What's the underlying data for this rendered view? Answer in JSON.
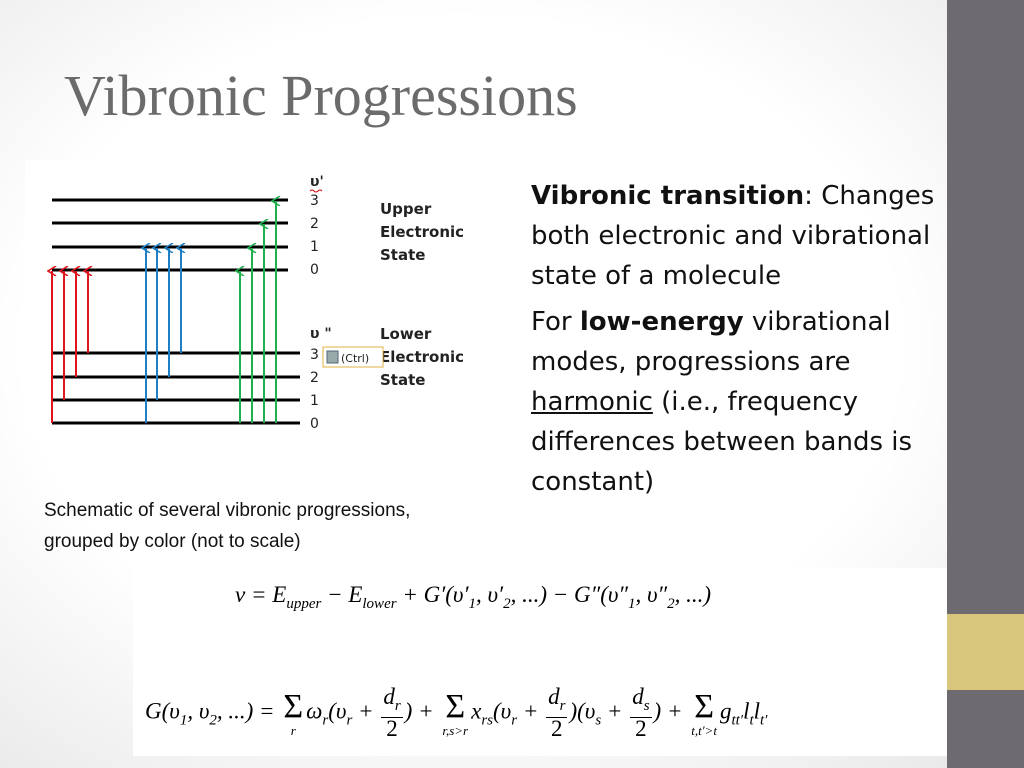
{
  "title": "Vibronic Progressions",
  "diagram": {
    "upper_symbol": "υ'",
    "upper_levels": [
      "3",
      "2",
      "1",
      "0"
    ],
    "upper_label": [
      "Upper",
      "Electronic",
      "State"
    ],
    "lower_symbol": "υ \"",
    "lower_levels": [
      "3",
      "2",
      "1",
      "0"
    ],
    "lower_label": [
      "Lower",
      "Electronic",
      "State"
    ],
    "paste_tag": "(Ctrl)"
  },
  "caption": [
    "Schematic of several vibronic progressions,",
    "grouped by color (not to scale)"
  ],
  "bullets": [
    [
      {
        "text": "Vibronic transition",
        "style": "bold"
      },
      {
        "text": ": Changes both electronic and vibrational state of a molecule",
        "style": "normal"
      }
    ],
    [
      {
        "text": "For ",
        "style": "normal"
      },
      {
        "text": "low-energy",
        "style": "bold"
      },
      {
        "text": " vibrational modes, progressions are ",
        "style": "normal"
      },
      {
        "text": "harmonic",
        "style": "underline"
      },
      {
        "text": " (i.e., frequency differences between bands is constant)",
        "style": "normal"
      }
    ]
  ],
  "equations": [
    [
      {
        "text": "ν",
        "style": "normal"
      },
      {
        "text": " = ",
        "style": "normal"
      },
      {
        "text": "E",
        "style": "normal"
      },
      {
        "text": "upper",
        "style": "sub"
      },
      {
        "text": " − E",
        "style": "normal"
      },
      {
        "text": "lower",
        "style": "sub"
      },
      {
        "text": " + G′(υ′",
        "style": "normal"
      },
      {
        "text": "1",
        "style": "sub"
      },
      {
        "text": ", υ′",
        "style": "normal"
      },
      {
        "text": "2",
        "style": "sub"
      },
      {
        "text": ", ...) − G″(υ″",
        "style": "normal"
      },
      {
        "text": "1",
        "style": "sub"
      },
      {
        "text": ", υ″",
        "style": "normal"
      },
      {
        "text": "2",
        "style": "sub"
      },
      {
        "text": ", ...)",
        "style": "normal"
      }
    ],
    [
      {
        "text": "G(υ",
        "style": "normal"
      },
      {
        "text": "1",
        "style": "sub"
      },
      {
        "text": ", υ",
        "style": "normal"
      },
      {
        "text": "2",
        "style": "sub"
      },
      {
        "text": ", ...) = ",
        "style": "normal"
      },
      {
        "text": "Σ",
        "style": "sum",
        "under": "r"
      },
      {
        "text": "ω",
        "style": "normal"
      },
      {
        "text": "r",
        "style": "sub"
      },
      {
        "text": "(υ",
        "style": "normal"
      },
      {
        "text": "r",
        "style": "sub"
      },
      {
        "text": " + ",
        "style": "normal"
      },
      {
        "text": "d",
        "style": "frac",
        "numsub": "r",
        "den": "2"
      },
      {
        "text": ") + ",
        "style": "normal"
      },
      {
        "text": "Σ",
        "style": "sum",
        "under": "r,s>r"
      },
      {
        "text": "x",
        "style": "normal"
      },
      {
        "text": "rs",
        "style": "sub"
      },
      {
        "text": "(υ",
        "style": "normal"
      },
      {
        "text": "r",
        "style": "sub"
      },
      {
        "text": " + ",
        "style": "normal"
      },
      {
        "text": "d",
        "style": "frac",
        "numsub": "r",
        "den": "2"
      },
      {
        "text": ")(υ",
        "style": "normal"
      },
      {
        "text": "s",
        "style": "sub"
      },
      {
        "text": " + ",
        "style": "normal"
      },
      {
        "text": "d",
        "style": "frac",
        "numsub": "s",
        "den": "2"
      },
      {
        "text": ") + ",
        "style": "normal"
      },
      {
        "text": "Σ",
        "style": "sum",
        "under": "t,t′>t"
      },
      {
        "text": "g",
        "style": "normal"
      },
      {
        "text": "tt′",
        "style": "sub"
      },
      {
        "text": "l",
        "style": "normal"
      },
      {
        "text": "t",
        "style": "sub"
      },
      {
        "text": "l",
        "style": "normal"
      },
      {
        "text": "t′",
        "style": "sub"
      }
    ]
  ]
}
